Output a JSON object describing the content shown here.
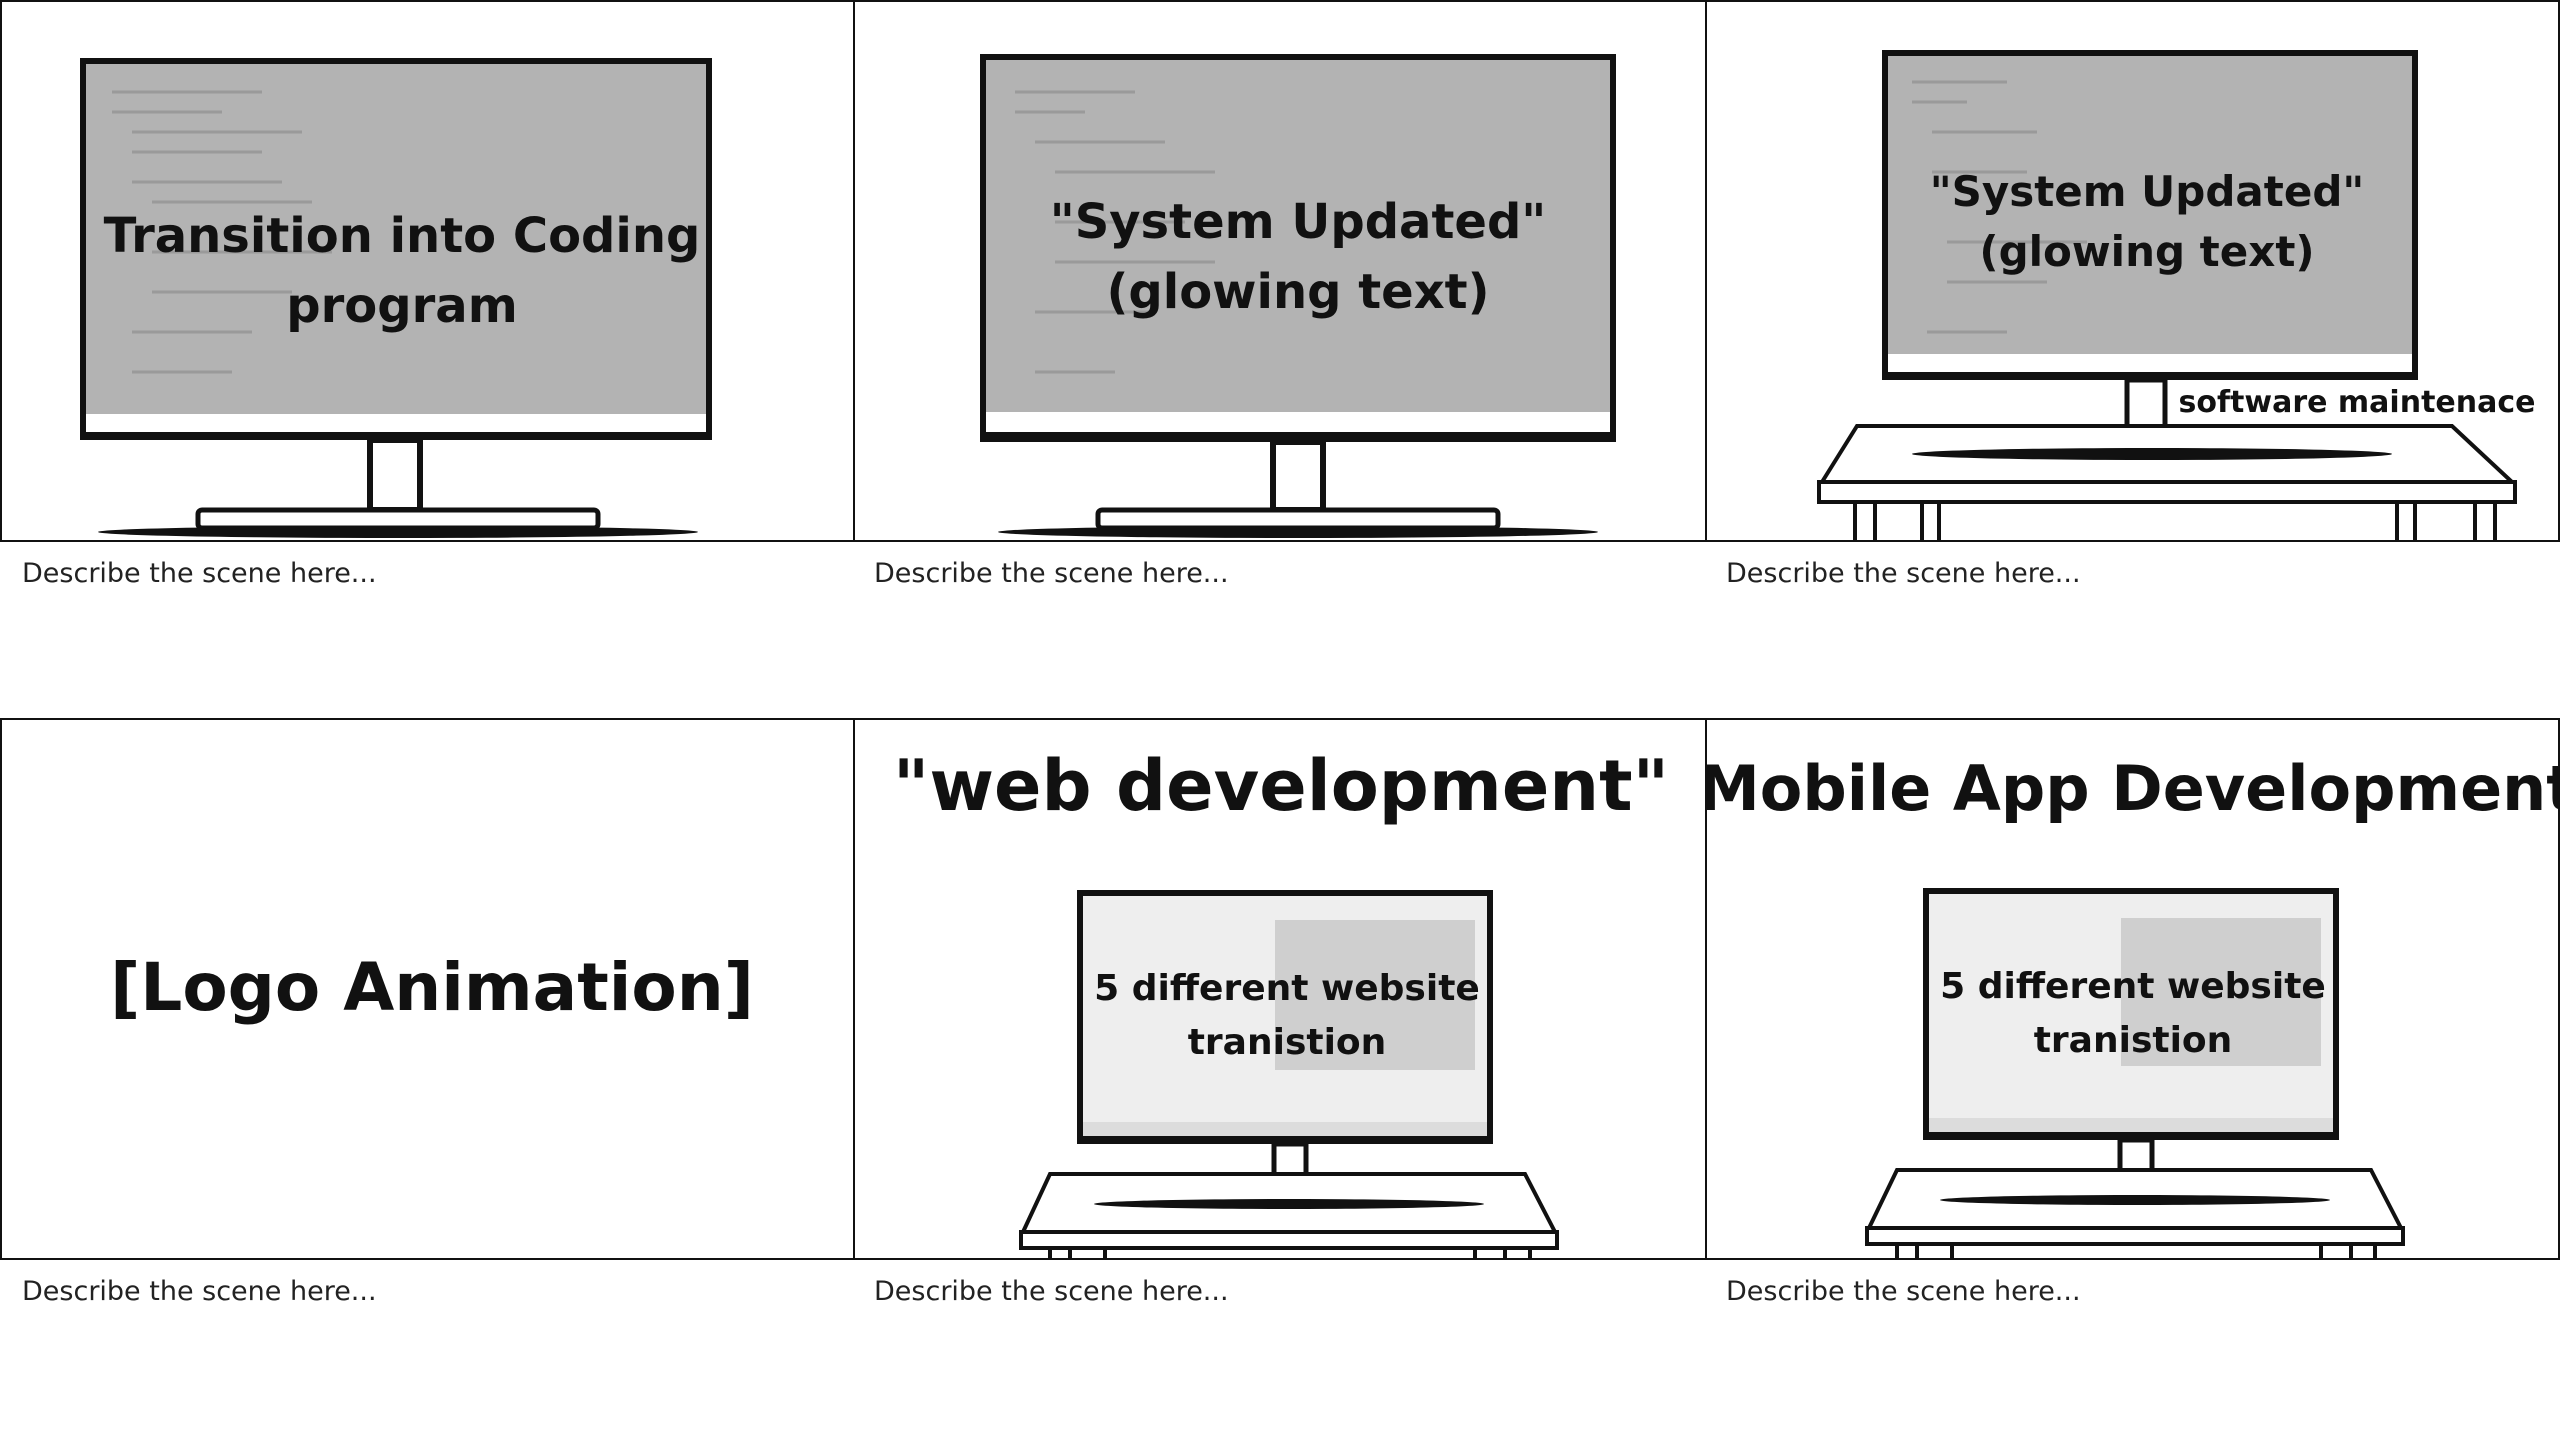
{
  "panels": [
    {
      "overlay": [
        "Transition into Coding",
        "program"
      ],
      "caption": "Describe the scene here..."
    },
    {
      "overlay": [
        "\"System Updated\"",
        "(glowing text)"
      ],
      "caption": "Describe the scene here..."
    },
    {
      "overlay": [
        "\"System Updated\"",
        "(glowing text)"
      ],
      "extra": "software maintenace",
      "caption": "Describe the scene here..."
    },
    {
      "center": "[Logo Animation]",
      "caption": "Describe the scene here..."
    },
    {
      "title": "\"web development\"",
      "overlay": [
        "5 different website",
        "tranistion"
      ],
      "caption": "Describe the scene here..."
    },
    {
      "title": "\"Mobile App Development\"",
      "overlay": [
        "5 different website",
        "tranistion"
      ],
      "caption": "Describe the scene here..."
    }
  ],
  "colors": {
    "border": "#111111",
    "screen": "#b0b0b0",
    "screen_light": "#eeeeee"
  }
}
